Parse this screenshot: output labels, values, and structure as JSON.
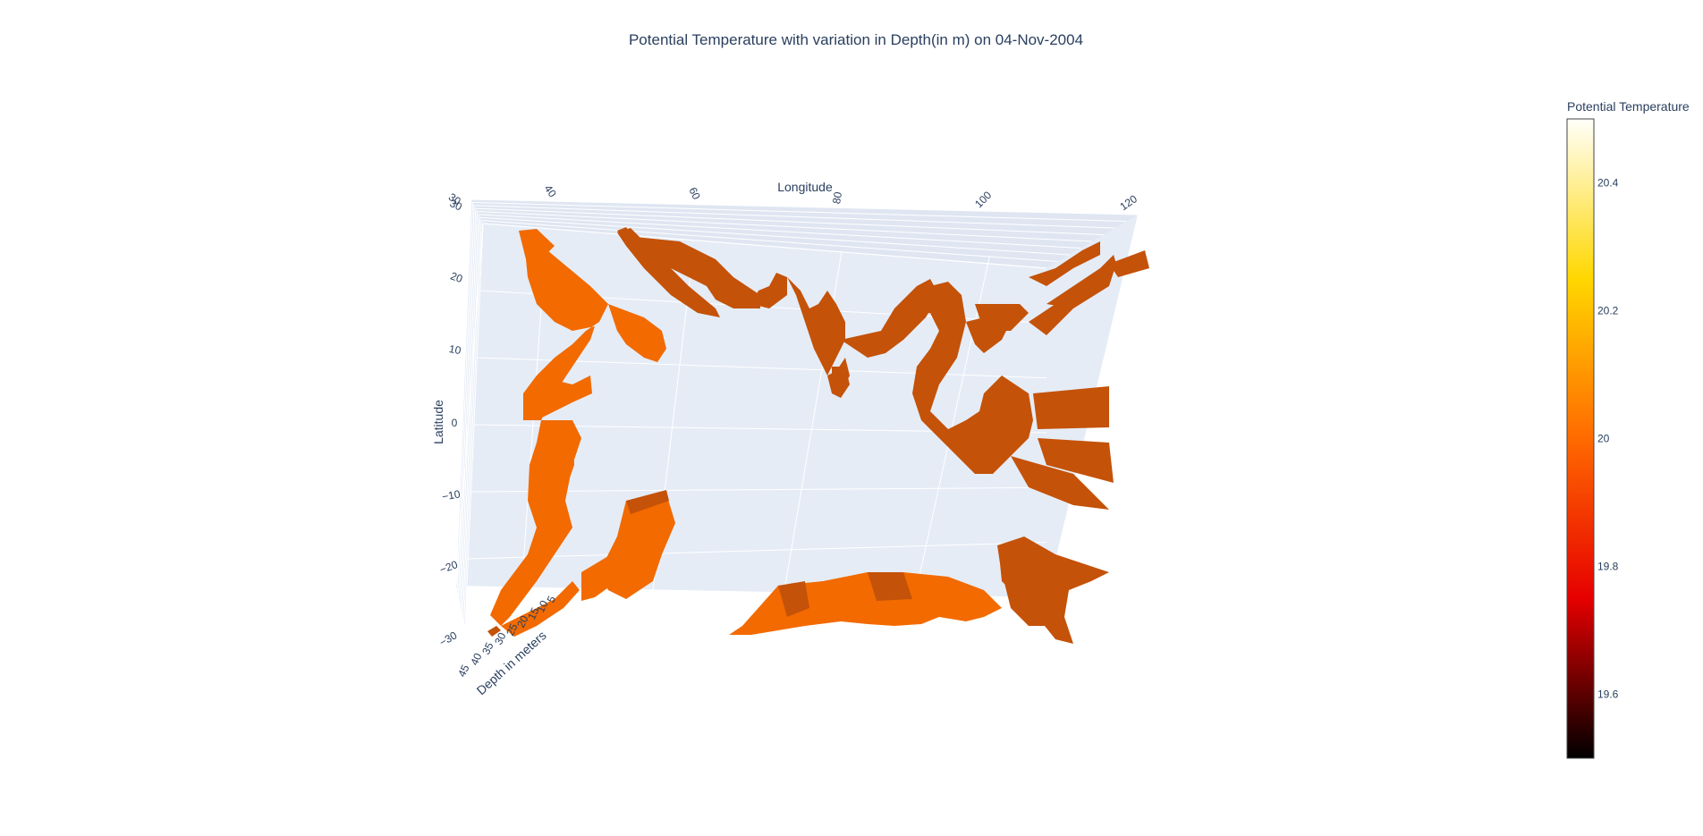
{
  "chart_data": {
    "type": "3d-surface",
    "title": "Potential Temperature with variation in Depth(in m) on 04-Nov-2004",
    "axes": {
      "x": {
        "label": "Longitude",
        "range": [
          30,
          120
        ],
        "ticks": [
          "30",
          "40",
          "60",
          "80",
          "100",
          "120"
        ]
      },
      "y": {
        "label": "Latitude",
        "range": [
          -30,
          30
        ],
        "ticks": [
          "30",
          "20",
          "10",
          "0",
          "−10",
          "−20",
          "−30"
        ]
      },
      "z": {
        "label": "Depth in meters",
        "range": [
          5,
          45
        ],
        "ticks": [
          "45",
          "40",
          "35",
          "30",
          "25",
          "20",
          "15",
          "10",
          "5"
        ]
      }
    },
    "colorbar": {
      "title": "Potential Temperature",
      "range": [
        19.5,
        20.5
      ],
      "ticks": [
        "20.4",
        "20.2",
        "20",
        "19.8",
        "19.6"
      ],
      "colorscale": [
        "#000000",
        "#e60000",
        "#ff6a00",
        "#ffd700",
        "#fffffa"
      ]
    },
    "surface_color_value": 20,
    "surface_colors": {
      "lit": "#f26a00",
      "shadow": "#c45208"
    },
    "grid": true,
    "background": "#e5ecf6"
  }
}
